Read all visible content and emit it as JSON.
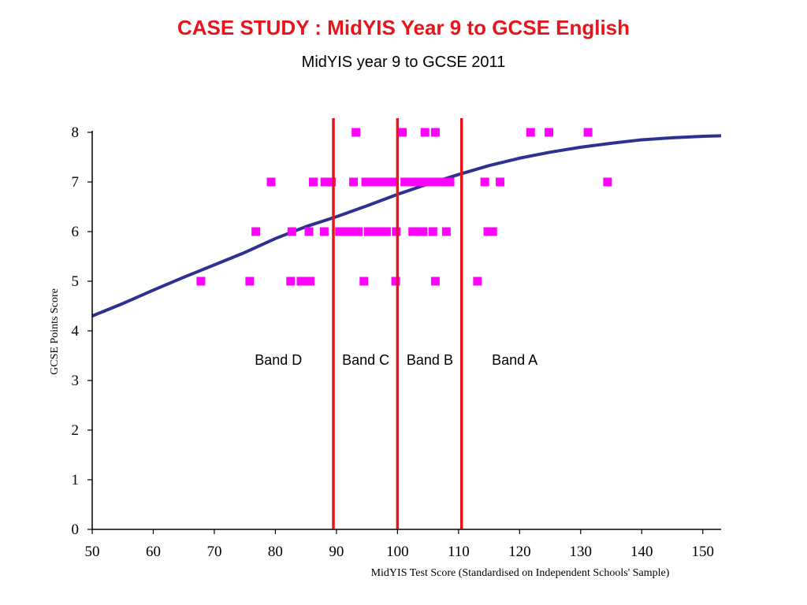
{
  "slide": {
    "title": "CASE STUDY : MidYIS Year 9 to GCSE English"
  },
  "colors": {
    "title": "#e8141b",
    "trend": "#2e3192",
    "points": "#ff00ff",
    "band_lines": "#e8141b",
    "axis": "#000000"
  },
  "chart_data": {
    "type": "scatter",
    "title": "MidYIS year 9 to GCSE 2011",
    "xlabel": "MidYIS Test Score (Standardised on Independent Schools' Sample)",
    "ylabel": "GCSE Points Score",
    "xlim": [
      50,
      153
    ],
    "ylim": [
      0,
      8
    ],
    "xticks": [
      50,
      60,
      70,
      80,
      90,
      100,
      110,
      120,
      130,
      140,
      150
    ],
    "yticks": [
      0,
      1,
      2,
      3,
      4,
      5,
      6,
      7,
      8
    ],
    "grid": false,
    "band_boundaries": [
      89.5,
      100,
      110.5
    ],
    "bands": [
      {
        "label": "Band D",
        "x": 80.5
      },
      {
        "label": "Band C",
        "x": 94.8
      },
      {
        "label": "Band B",
        "x": 105.3
      },
      {
        "label": "Band A",
        "x": 119.2
      }
    ],
    "trend_line": {
      "x": [
        50,
        55,
        60,
        65,
        70,
        75,
        80,
        85,
        90,
        95,
        100,
        105,
        110,
        115,
        120,
        125,
        130,
        135,
        140,
        145,
        150,
        153
      ],
      "y": [
        4.3,
        4.55,
        4.82,
        5.08,
        5.33,
        5.58,
        5.86,
        6.1,
        6.3,
        6.52,
        6.75,
        6.96,
        7.15,
        7.33,
        7.48,
        7.6,
        7.7,
        7.78,
        7.85,
        7.89,
        7.92,
        7.93
      ]
    },
    "series": [
      {
        "points": [
          [
            93.2,
            8
          ],
          [
            100.8,
            8
          ],
          [
            104.5,
            8
          ],
          [
            106.2,
            8
          ],
          [
            121.8,
            8
          ],
          [
            124.8,
            8
          ],
          [
            131.2,
            8
          ],
          [
            79.3,
            7
          ],
          [
            86.2,
            7
          ],
          [
            88.1,
            7
          ],
          [
            89.2,
            7
          ],
          [
            92.8,
            7
          ],
          [
            94.8,
            7
          ],
          [
            95.5,
            7
          ],
          [
            96.2,
            7
          ],
          [
            97.0,
            7
          ],
          [
            97.8,
            7
          ],
          [
            98.5,
            7
          ],
          [
            99.2,
            7
          ],
          [
            101.2,
            7
          ],
          [
            102.0,
            7
          ],
          [
            102.8,
            7
          ],
          [
            103.5,
            7
          ],
          [
            104.2,
            7
          ],
          [
            104.9,
            7
          ],
          [
            105.6,
            7
          ],
          [
            106.3,
            7
          ],
          [
            107.0,
            7
          ],
          [
            107.8,
            7
          ],
          [
            108.6,
            7
          ],
          [
            114.3,
            7
          ],
          [
            116.8,
            7
          ],
          [
            134.4,
            7
          ],
          [
            76.8,
            6
          ],
          [
            82.7,
            6
          ],
          [
            85.5,
            6
          ],
          [
            88.0,
            6
          ],
          [
            90.5,
            6
          ],
          [
            91.2,
            6
          ],
          [
            92.0,
            6
          ],
          [
            92.8,
            6
          ],
          [
            93.6,
            6
          ],
          [
            95.2,
            6
          ],
          [
            96.0,
            6
          ],
          [
            96.8,
            6
          ],
          [
            97.5,
            6
          ],
          [
            98.2,
            6
          ],
          [
            99.8,
            6
          ],
          [
            102.5,
            6
          ],
          [
            103.4,
            6
          ],
          [
            104.2,
            6
          ],
          [
            105.8,
            6
          ],
          [
            108.0,
            6
          ],
          [
            114.8,
            6
          ],
          [
            115.6,
            6
          ],
          [
            67.8,
            5
          ],
          [
            75.8,
            5
          ],
          [
            82.5,
            5
          ],
          [
            84.2,
            5
          ],
          [
            85.0,
            5
          ],
          [
            85.7,
            5
          ],
          [
            94.5,
            5
          ],
          [
            99.7,
            5
          ],
          [
            106.2,
            5
          ],
          [
            113.1,
            5
          ]
        ]
      }
    ]
  }
}
